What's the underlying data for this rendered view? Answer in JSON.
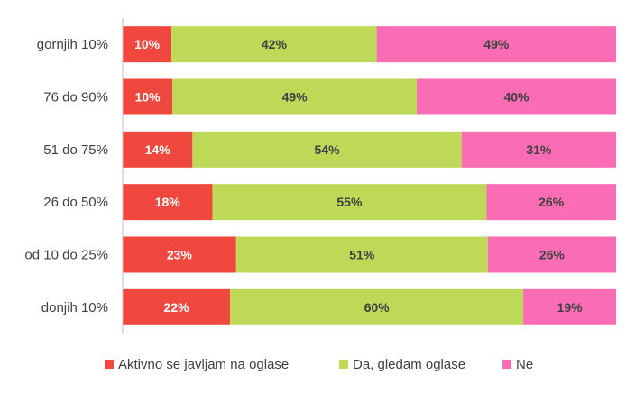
{
  "chart_data": {
    "type": "bar",
    "orientation": "horizontal",
    "stacked": true,
    "normalized": true,
    "categories": [
      "gornjih 10%",
      "76 do 90%",
      "51 do 75%",
      "26 do 50%",
      "od 10 do 25%",
      "donjih 10%"
    ],
    "series": [
      {
        "name": "Aktivno se javljam na oglase",
        "color": "#f0483e",
        "label_color": "#ffffff",
        "values": [
          10,
          10,
          14,
          18,
          23,
          22
        ],
        "labels": [
          "10%",
          "10%",
          "14%",
          "18%",
          "23%",
          "22%"
        ]
      },
      {
        "name": "Da, gledam oglase",
        "color": "#bdd957",
        "label_color": "#404040",
        "values": [
          42,
          49,
          54,
          55,
          51,
          60
        ],
        "labels": [
          "42%",
          "49%",
          "54%",
          "55%",
          "51%",
          "60%"
        ]
      },
      {
        "name": "Ne",
        "color": "#fa6db5",
        "label_color": "#404040",
        "values": [
          49,
          40,
          31,
          26,
          26,
          19
        ],
        "labels": [
          "49%",
          "40%",
          "31%",
          "26%",
          "26%",
          "19%"
        ]
      }
    ],
    "xlim": [
      0,
      100
    ],
    "grid": false,
    "legend_position": "bottom"
  },
  "colors": {
    "axis": "#bfbfbf",
    "text": "#404040"
  }
}
